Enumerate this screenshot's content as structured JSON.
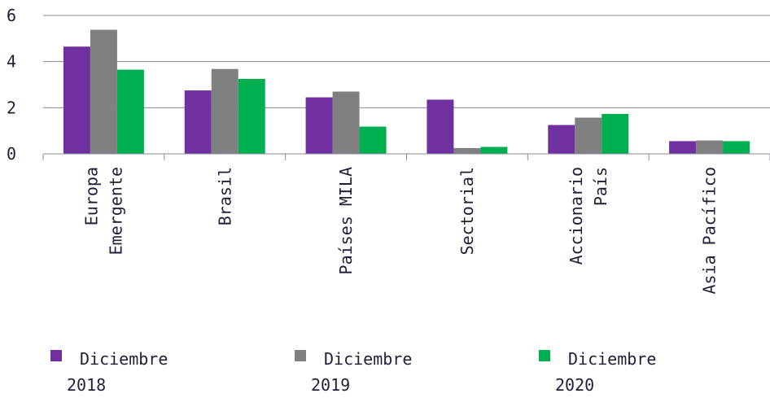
{
  "chart_data": {
    "type": "bar",
    "categories": [
      "Europa\nEmergente",
      "Brasil",
      "Países MILA",
      "Sectorial",
      "Accionario\nPaís",
      "Asia Pacífico"
    ],
    "series": [
      {
        "name": "Diciembre\n2018",
        "color": "#7030a0",
        "values": [
          4.65,
          2.75,
          2.45,
          2.35,
          1.25,
          0.55
        ]
      },
      {
        "name": "Diciembre\n2019",
        "color": "#808080",
        "values": [
          5.38,
          3.68,
          2.7,
          0.25,
          1.57,
          0.58
        ]
      },
      {
        "name": "Diciembre\n2020",
        "color": "#00b050",
        "values": [
          3.65,
          3.25,
          1.18,
          0.3,
          1.73,
          0.55
        ]
      }
    ],
    "ylim": [
      0,
      6
    ],
    "yticks": [
      0,
      2,
      4,
      6
    ],
    "grid": true
  }
}
